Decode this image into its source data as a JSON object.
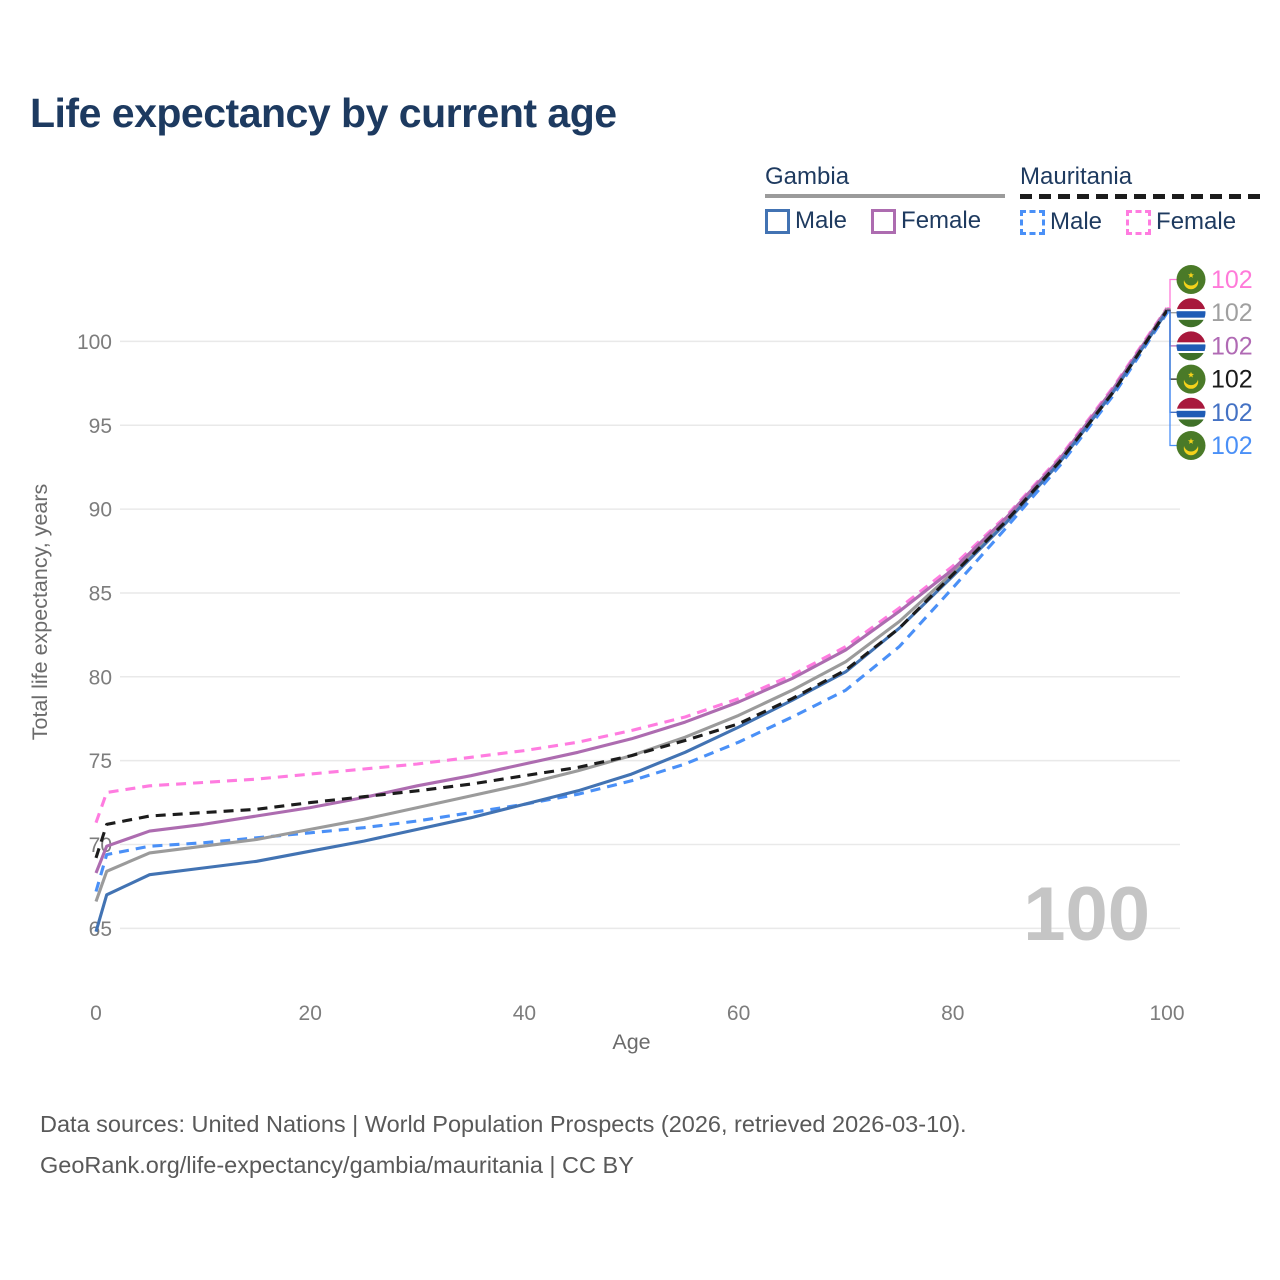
{
  "title": "Life expectancy by current age",
  "legend": {
    "groups": [
      {
        "label": "Gambia",
        "line_style": "solid",
        "underline_color": "#9b9b9b",
        "items": [
          {
            "label": "Male",
            "color": "#4273b3"
          },
          {
            "label": "Female",
            "color": "#ad6cb0"
          }
        ]
      },
      {
        "label": "Mauritania",
        "line_style": "dashed",
        "underline_color": "#1c1c1c",
        "items": [
          {
            "label": "Male",
            "color": "#4a90f7"
          },
          {
            "label": "Female",
            "color": "#ff7ce0"
          }
        ]
      }
    ]
  },
  "watermark_age": "100",
  "footer": {
    "line1": "Data sources: United Nations | World Population Prospects (2026, retrieved 2026-03-10).",
    "line2": "GeoRank.org/life-expectancy/gambia/mauritania | CC BY"
  },
  "chart_data": {
    "type": "line",
    "title": "Life expectancy by current age",
    "xlabel": "Age",
    "ylabel": "Total life expectancy, years",
    "xlim": [
      0,
      100
    ],
    "ylim": [
      63.5,
      103.5
    ],
    "x_ticks": [
      0,
      20,
      40,
      60,
      80,
      100
    ],
    "y_ticks": [
      65,
      70,
      75,
      80,
      85,
      90,
      95,
      100
    ],
    "grid": "horizontal",
    "legend_position": "top-right",
    "x": [
      0,
      1,
      5,
      10,
      15,
      20,
      25,
      30,
      35,
      40,
      45,
      50,
      55,
      60,
      65,
      70,
      75,
      80,
      85,
      90,
      95,
      100
    ],
    "series": [
      {
        "key": "mauritania_female",
        "name": "Mauritania Female",
        "country": "Mauritania",
        "sex": "Female",
        "color": "#ff7ce0",
        "dashed": true,
        "end_label": "102",
        "values": [
          71.3,
          73.1,
          73.5,
          73.7,
          73.9,
          74.2,
          74.5,
          74.8,
          75.2,
          75.6,
          76.1,
          76.8,
          77.6,
          78.7,
          80.1,
          81.8,
          84.1,
          86.6,
          89.6,
          93.1,
          97.3,
          102.0
        ]
      },
      {
        "key": "mauritania_male",
        "name": "Mauritania Male",
        "country": "Mauritania",
        "sex": "Male",
        "color": "#4a90f7",
        "dashed": true,
        "end_label": "102",
        "values": [
          67.2,
          69.4,
          69.9,
          70.1,
          70.4,
          70.7,
          71.0,
          71.4,
          71.9,
          72.4,
          73.0,
          73.8,
          74.8,
          76.1,
          77.6,
          79.2,
          81.8,
          85.3,
          88.9,
          92.6,
          96.8,
          101.7
        ]
      },
      {
        "key": "gambia_total",
        "name": "Gambia",
        "country": "Gambia",
        "sex": "Total",
        "color": "#9b9b9b",
        "dashed": false,
        "end_label": "102",
        "values": [
          66.6,
          68.4,
          69.5,
          69.9,
          70.3,
          70.9,
          71.5,
          72.2,
          72.9,
          73.6,
          74.4,
          75.3,
          76.4,
          77.7,
          79.2,
          80.9,
          83.3,
          86.2,
          89.3,
          92.9,
          97.1,
          101.95
        ]
      },
      {
        "key": "gambia_female",
        "name": "Gambia Female",
        "country": "Gambia",
        "sex": "Female",
        "color": "#ad6cb0",
        "dashed": false,
        "end_label": "102",
        "values": [
          68.3,
          69.9,
          70.8,
          71.2,
          71.7,
          72.2,
          72.8,
          73.5,
          74.1,
          74.8,
          75.5,
          76.3,
          77.3,
          78.5,
          79.9,
          81.6,
          83.9,
          86.4,
          89.5,
          93.0,
          97.2,
          101.9
        ]
      },
      {
        "key": "gambia_male",
        "name": "Gambia Male",
        "country": "Gambia",
        "sex": "Male",
        "color": "#4273b3",
        "dashed": false,
        "end_label": "102",
        "values": [
          64.8,
          67.0,
          68.2,
          68.6,
          69.0,
          69.6,
          70.2,
          70.9,
          71.6,
          72.4,
          73.2,
          74.2,
          75.5,
          77.0,
          78.6,
          80.3,
          82.9,
          86.0,
          89.2,
          92.8,
          97.0,
          101.8
        ]
      },
      {
        "key": "mauritania_total",
        "name": "Mauritania",
        "country": "Mauritania",
        "sex": "Total",
        "color": "#1c1c1c",
        "dashed": true,
        "end_label": "102",
        "values": [
          69.2,
          71.2,
          71.7,
          71.9,
          72.1,
          72.5,
          72.85,
          73.2,
          73.6,
          74.1,
          74.6,
          75.3,
          76.2,
          77.2,
          78.7,
          80.4,
          82.9,
          86.1,
          89.3,
          92.85,
          97.0,
          101.85
        ]
      }
    ]
  },
  "end_labels": [
    {
      "series": "mauritania_female",
      "country": "Mauritania",
      "flag": "mr",
      "value": "102",
      "color": "#ff7ad9"
    },
    {
      "series": "gambia_total",
      "country": "Gambia",
      "flag": "gm",
      "value": "102",
      "color": "#a0a0a0"
    },
    {
      "series": "gambia_female",
      "country": "Gambia",
      "flag": "gm",
      "value": "102",
      "color": "#b06ab4"
    },
    {
      "series": "mauritania_total",
      "country": "Mauritania",
      "flag": "mr",
      "value": "102",
      "color": "#1a1a1a"
    },
    {
      "series": "gambia_male",
      "country": "Gambia",
      "flag": "gm",
      "value": "102",
      "color": "#4472c4"
    },
    {
      "series": "mauritania_male",
      "country": "Mauritania",
      "flag": "mr",
      "value": "102",
      "color": "#4a90f7"
    }
  ]
}
